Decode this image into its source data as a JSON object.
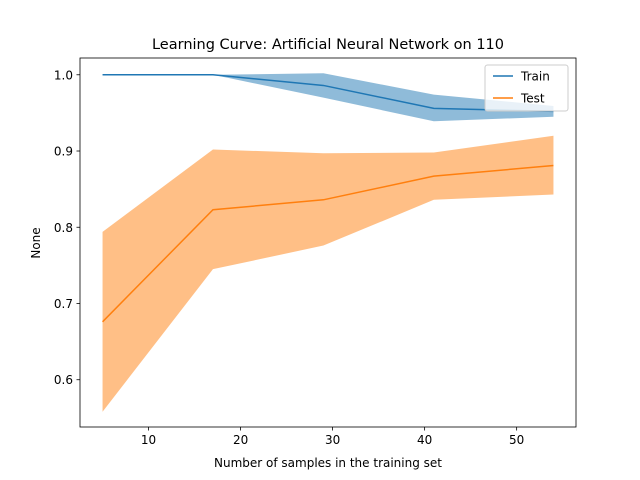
{
  "chart_data": {
    "type": "line",
    "title": "Learning Curve: Artificial Neural Network on 110",
    "xlabel": "Number of samples in the training set",
    "ylabel": "None",
    "xlim": [
      2.55,
      56.45
    ],
    "ylim": [
      0.538,
      1.022
    ],
    "xticks": [
      10,
      20,
      30,
      40,
      50
    ],
    "yticks": [
      0.6,
      0.7,
      0.8,
      0.9,
      1.0
    ],
    "xtick_labels": [
      "10",
      "20",
      "30",
      "40",
      "50"
    ],
    "ytick_labels": [
      "0.6",
      "0.7",
      "0.8",
      "0.9",
      "1.0"
    ],
    "x": [
      5,
      17,
      29,
      41,
      54
    ],
    "grid": false,
    "legend_position": "top-right",
    "series": [
      {
        "name": "Train",
        "color": "#1f77b4",
        "values": [
          1.0,
          1.0,
          0.986,
          0.956,
          0.952
        ],
        "lower": [
          1.0,
          1.0,
          0.97,
          0.939,
          0.945
        ],
        "upper": [
          1.0,
          1.0,
          1.002,
          0.974,
          0.959
        ]
      },
      {
        "name": "Test",
        "color": "#ff7f0e",
        "values": [
          0.676,
          0.823,
          0.836,
          0.867,
          0.881
        ],
        "lower": [
          0.558,
          0.745,
          0.776,
          0.836,
          0.843
        ],
        "upper": [
          0.794,
          0.902,
          0.897,
          0.898,
          0.92
        ]
      }
    ]
  }
}
